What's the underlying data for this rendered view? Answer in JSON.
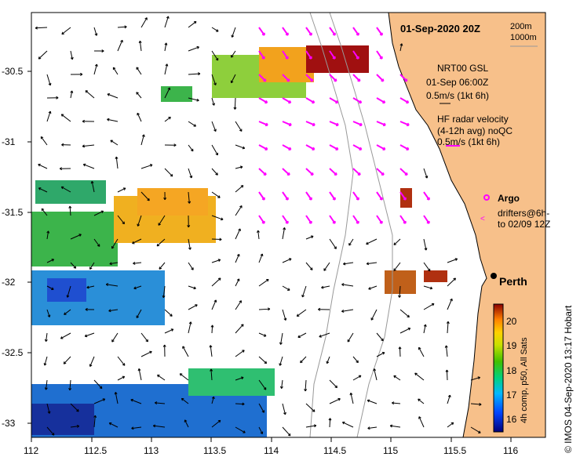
{
  "map": {
    "title": "01-Sep-2020 20Z",
    "depth_contours": [
      "200m",
      "1000m"
    ],
    "city": "Perth",
    "credit": "© IMOS 04-Sep-2020 13:17 Hobart"
  },
  "axes": {
    "x_ticks": [
      "112",
      "112.5",
      "113",
      "113.5",
      "114",
      "114.5",
      "115",
      "115.5",
      "116"
    ],
    "y_ticks": [
      "-30.5",
      "-31",
      "-31.5",
      "-32",
      "-32.5",
      "-33"
    ]
  },
  "legend": {
    "gsl_title": "NRT00 GSL",
    "gsl_time": "01-Sep 06:00Z",
    "gsl_scale": "0.5m/s (1kt 6h)",
    "hf_title": "HF radar velocity",
    "hf_subtitle": "(4-12h avg) noQC",
    "hf_scale": "0.5m/s (1kt 6h)",
    "argo": "Argo",
    "drifters_1": "drifters@6h-",
    "drifters_2": "to 02/09 12Z"
  },
  "colorbar": {
    "label": "4h comp, p50, All Sats",
    "ticks": [
      "16",
      "17",
      "18",
      "19",
      "20"
    ],
    "min": 15.5,
    "max": 20.7
  },
  "colors": {
    "land": "#f7c08a",
    "hf_arrow": "#ff00ff",
    "gsl_arrow": "#000000",
    "coast": "#000000"
  }
}
